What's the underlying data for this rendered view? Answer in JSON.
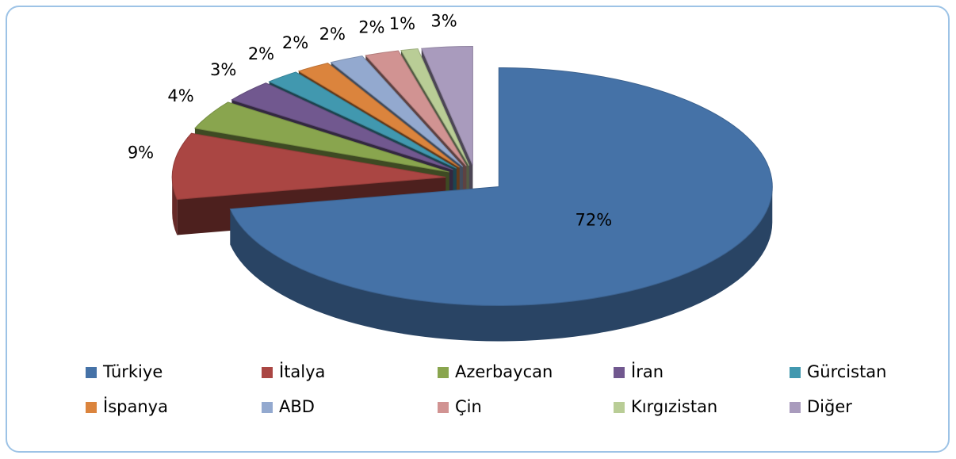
{
  "chart_data": {
    "type": "pie",
    "categories": [
      "Türkiye",
      "İtalya",
      "Azerbaycan",
      "İran",
      "Gürcistan",
      "İspanya",
      "ABD",
      "Çin",
      "Kırgızistan",
      "Diğer"
    ],
    "values": [
      72,
      9,
      4,
      3,
      2,
      2,
      2,
      2,
      1,
      3
    ],
    "value_labels": [
      "72%",
      "9%",
      "4%",
      "3%",
      "2%",
      "2%",
      "2%",
      "2%",
      "1%",
      "3%"
    ],
    "colors": [
      "#4572a7",
      "#aa4643",
      "#89a54e",
      "#71588f",
      "#4198af",
      "#db843d",
      "#93a9cf",
      "#d19392",
      "#b9cd96",
      "#a99bbd"
    ],
    "legend": "bottom"
  }
}
